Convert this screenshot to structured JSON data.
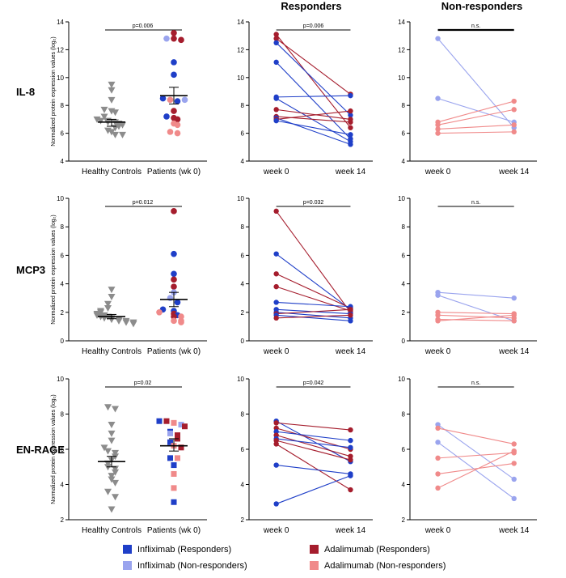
{
  "headers": {
    "responders": "Responders",
    "nonresponders": "Non-responders"
  },
  "ylabel": "Normalized protein expression values (log₂)",
  "legend": [
    {
      "label": "Infliximab (Responders)",
      "color": "#1f3fc8"
    },
    {
      "label": "Infliximab (Non-responders)",
      "color": "#9aa4ee"
    },
    {
      "label": "Adalimumab (Responders)",
      "color": "#a51d2d"
    },
    {
      "label": "Adalimumab (Non-responders)",
      "color": "#f08a8a"
    }
  ],
  "colors": {
    "healthy": "#8c8c8c",
    "ifx_r": "#1f3fc8",
    "ifx_nr": "#9aa4ee",
    "ada_r": "#a51d2d",
    "ada_nr": "#f08a8a"
  },
  "chart_data": [
    {
      "type": "scatter",
      "row_label": "IL-8",
      "xlabel_categories": [
        "Healthy Controls",
        "Patients (wk 0)"
      ],
      "ylim": [
        4,
        14
      ],
      "yticks": [
        4,
        6,
        8,
        10,
        12,
        14
      ],
      "p_text": "p=0.006",
      "healthy": {
        "values": [
          9.5,
          9.1,
          8.4,
          7.7,
          7.6,
          7.5,
          7.2,
          7.0,
          6.9,
          6.9,
          6.8,
          6.8,
          6.7,
          6.6,
          6.5,
          6.4,
          6.2,
          6.1,
          5.9,
          5.9
        ],
        "mean": 6.8,
        "sem_low": 6.5,
        "sem_high": 7.0
      },
      "patients": [
        {
          "group": "ada_r",
          "value": 13.2
        },
        {
          "group": "ifx_nr",
          "value": 12.8
        },
        {
          "group": "ada_r",
          "value": 12.8
        },
        {
          "group": "ada_r",
          "value": 12.7
        },
        {
          "group": "ifx_r",
          "value": 11.1
        },
        {
          "group": "ifx_r",
          "value": 10.2
        },
        {
          "group": "ifx_r",
          "value": 8.5
        },
        {
          "group": "ada_nr",
          "value": 8.4
        },
        {
          "group": "ifx_r",
          "value": 8.3
        },
        {
          "group": "ifx_nr",
          "value": 8.4
        },
        {
          "group": "ada_r",
          "value": 7.6
        },
        {
          "group": "ifx_r",
          "value": 7.2
        },
        {
          "group": "ada_r",
          "value": 7.1
        },
        {
          "group": "ada_r",
          "value": 7.0
        },
        {
          "group": "ada_nr",
          "value": 6.7
        },
        {
          "group": "ada_nr",
          "value": 6.6
        },
        {
          "group": "ada_nr",
          "value": 6.1
        },
        {
          "group": "ada_nr",
          "value": 6.0
        }
      ],
      "patients_mean": 8.7,
      "patients_sem_low": 8.1,
      "patients_sem_high": 9.3,
      "responders": {
        "categories": [
          "week 0",
          "week 14"
        ],
        "ylim": [
          4,
          14
        ],
        "yticks": [
          4,
          6,
          8,
          10,
          12,
          14
        ],
        "p_text": "p=0.006",
        "series": [
          {
            "group": "ada_r",
            "values": [
              13.1,
              6.4
            ]
          },
          {
            "group": "ada_r",
            "values": [
              12.8,
              8.8
            ]
          },
          {
            "group": "ifx_r",
            "values": [
              12.5,
              7.3
            ]
          },
          {
            "group": "ifx_r",
            "values": [
              11.1,
              5.6
            ]
          },
          {
            "group": "ifx_r",
            "values": [
              8.6,
              8.7
            ]
          },
          {
            "group": "ifx_r",
            "values": [
              8.5,
              5.4
            ]
          },
          {
            "group": "ada_r",
            "values": [
              7.7,
              7.0
            ]
          },
          {
            "group": "ada_r",
            "values": [
              7.2,
              6.8
            ]
          },
          {
            "group": "ifx_r",
            "values": [
              7.1,
              5.2
            ]
          },
          {
            "group": "ada_r",
            "values": [
              7.0,
              7.6
            ]
          },
          {
            "group": "ifx_r",
            "values": [
              6.9,
              5.9
            ]
          }
        ]
      },
      "nonresponders": {
        "categories": [
          "week 0",
          "week 14"
        ],
        "ylim": [
          4,
          14
        ],
        "yticks": [
          4,
          6,
          8,
          10,
          12,
          14
        ],
        "p_text": "n.s.",
        "series": [
          {
            "group": "ifx_nr",
            "values": [
              12.8,
              6.4
            ]
          },
          {
            "group": "ifx_nr",
            "values": [
              8.5,
              6.8
            ]
          },
          {
            "group": "ada_nr",
            "values": [
              6.8,
              8.3
            ]
          },
          {
            "group": "ada_nr",
            "values": [
              6.6,
              7.7
            ]
          },
          {
            "group": "ada_nr",
            "values": [
              6.3,
              6.6
            ]
          },
          {
            "group": "ada_nr",
            "values": [
              6.0,
              6.1
            ]
          }
        ]
      }
    },
    {
      "type": "scatter",
      "row_label": "MCP3",
      "xlabel_categories": [
        "Healthy Controls",
        "Patients (wk 0)"
      ],
      "ylim": [
        0,
        10
      ],
      "yticks": [
        0,
        2,
        4,
        6,
        8,
        10
      ],
      "p_text": "p=0.012",
      "healthy": {
        "values": [
          3.6,
          3.1,
          2.6,
          2.3,
          2.1,
          2.0,
          1.9,
          1.8,
          1.8,
          1.7,
          1.7,
          1.6,
          1.6,
          1.5,
          1.5,
          1.4,
          1.4,
          1.3,
          1.3,
          1.2
        ],
        "mean": 1.7,
        "sem_low": 1.55,
        "sem_high": 1.85
      },
      "patients": [
        {
          "group": "ada_r",
          "value": 9.1
        },
        {
          "group": "ifx_r",
          "value": 6.1
        },
        {
          "group": "ifx_r",
          "value": 4.7
        },
        {
          "group": "ada_r",
          "value": 4.3
        },
        {
          "group": "ada_r",
          "value": 3.8
        },
        {
          "group": "ifx_nr",
          "value": 3.4
        },
        {
          "group": "ifx_nr",
          "value": 3.0
        },
        {
          "group": "ifx_r",
          "value": 2.7
        },
        {
          "group": "ifx_r",
          "value": 2.2
        },
        {
          "group": "ada_nr",
          "value": 2.0
        },
        {
          "group": "ifx_r",
          "value": 2.1
        },
        {
          "group": "ada_r",
          "value": 1.9
        },
        {
          "group": "ifx_r",
          "value": 1.8
        },
        {
          "group": "ada_r",
          "value": 1.7
        },
        {
          "group": "ada_nr",
          "value": 1.7
        },
        {
          "group": "ada_nr",
          "value": 1.4
        },
        {
          "group": "ada_nr",
          "value": 1.4
        },
        {
          "group": "ada_nr",
          "value": 1.3
        }
      ],
      "patients_mean": 2.9,
      "patients_sem_low": 2.4,
      "patients_sem_high": 3.4,
      "responders": {
        "categories": [
          "week 0",
          "week 14"
        ],
        "ylim": [
          0,
          10
        ],
        "yticks": [
          0,
          2,
          4,
          6,
          8,
          10
        ],
        "p_text": "p=0.032",
        "series": [
          {
            "group": "ada_r",
            "values": [
              9.1,
              2.0
            ]
          },
          {
            "group": "ifx_r",
            "values": [
              6.1,
              2.2
            ]
          },
          {
            "group": "ada_r",
            "values": [
              4.7,
              2.3
            ]
          },
          {
            "group": "ada_r",
            "values": [
              3.8,
              2.1
            ]
          },
          {
            "group": "ifx_r",
            "values": [
              2.7,
              2.4
            ]
          },
          {
            "group": "ifx_r",
            "values": [
              2.2,
              1.9
            ]
          },
          {
            "group": "ifx_r",
            "values": [
              2.0,
              1.6
            ]
          },
          {
            "group": "ada_r",
            "values": [
              1.9,
              2.2
            ]
          },
          {
            "group": "ifx_r",
            "values": [
              1.8,
              1.4
            ]
          },
          {
            "group": "ada_r",
            "values": [
              1.6,
              1.8
            ]
          }
        ]
      },
      "nonresponders": {
        "categories": [
          "week 0",
          "week 14"
        ],
        "ylim": [
          0,
          10
        ],
        "yticks": [
          0,
          2,
          4,
          6,
          8,
          10
        ],
        "p_text": "n.s.",
        "series": [
          {
            "group": "ifx_nr",
            "values": [
              3.4,
              3.0
            ]
          },
          {
            "group": "ifx_nr",
            "values": [
              3.2,
              1.4
            ]
          },
          {
            "group": "ada_nr",
            "values": [
              2.0,
              1.9
            ]
          },
          {
            "group": "ada_nr",
            "values": [
              1.8,
              1.6
            ]
          },
          {
            "group": "ada_nr",
            "values": [
              1.5,
              1.4
            ]
          },
          {
            "group": "ada_nr",
            "values": [
              1.4,
              1.8
            ]
          }
        ]
      }
    },
    {
      "type": "scatter",
      "row_label": "EN-RAGE",
      "xlabel_categories": [
        "Healthy Controls",
        "Patients (wk 0)"
      ],
      "ylim": [
        2,
        10
      ],
      "yticks": [
        2,
        4,
        6,
        8,
        10
      ],
      "p_text": "p=0.02",
      "healthy": {
        "values": [
          8.4,
          8.3,
          7.4,
          6.9,
          6.5,
          6.1,
          5.9,
          5.8,
          5.6,
          5.4,
          5.2,
          5.0,
          4.9,
          4.7,
          4.5,
          4.3,
          4.1,
          3.6,
          3.3,
          2.6
        ],
        "mean": 5.3,
        "sem_low": 5.0,
        "sem_high": 5.6
      },
      "patients": [
        {
          "group": "ifx_r",
          "value": 7.6
        },
        {
          "group": "ada_r",
          "value": 7.6
        },
        {
          "group": "ada_nr",
          "value": 7.5
        },
        {
          "group": "ifx_nr",
          "value": 7.4
        },
        {
          "group": "ada_r",
          "value": 7.3
        },
        {
          "group": "ifx_r",
          "value": 7.0
        },
        {
          "group": "ifx_nr",
          "value": 6.9
        },
        {
          "group": "ada_r",
          "value": 6.8
        },
        {
          "group": "ada_r",
          "value": 6.6
        },
        {
          "group": "ifx_r",
          "value": 6.4
        },
        {
          "group": "ada_nr",
          "value": 6.2
        },
        {
          "group": "ada_r",
          "value": 6.1
        },
        {
          "group": "ifx_r",
          "value": 5.5
        },
        {
          "group": "ifx_r",
          "value": 5.1
        },
        {
          "group": "ada_nr",
          "value": 4.6
        },
        {
          "group": "ada_nr",
          "value": 3.8
        },
        {
          "group": "ifx_r",
          "value": 3.0
        },
        {
          "group": "ada_nr",
          "value": 5.5
        }
      ],
      "patients_mean": 6.2,
      "patients_sem_low": 5.9,
      "patients_sem_high": 6.6,
      "responders": {
        "categories": [
          "week 0",
          "week 14"
        ],
        "ylim": [
          2,
          10
        ],
        "yticks": [
          2,
          4,
          6,
          8,
          10
        ],
        "p_text": "p=0.042",
        "series": [
          {
            "group": "ifx_r",
            "values": [
              7.6,
              5.3
            ]
          },
          {
            "group": "ada_r",
            "values": [
              7.5,
              7.1
            ]
          },
          {
            "group": "ada_r",
            "values": [
              7.2,
              6.0
            ]
          },
          {
            "group": "ifx_r",
            "values": [
              7.0,
              6.5
            ]
          },
          {
            "group": "ada_r",
            "values": [
              6.8,
              5.6
            ]
          },
          {
            "group": "ifx_r",
            "values": [
              6.6,
              6.1
            ]
          },
          {
            "group": "ada_r",
            "values": [
              6.3,
              3.7
            ]
          },
          {
            "group": "ifx_r",
            "values": [
              5.1,
              4.6
            ]
          },
          {
            "group": "ifx_r",
            "values": [
              2.9,
              4.5
            ]
          },
          {
            "group": "ada_r",
            "values": [
              6.5,
              5.4
            ]
          }
        ]
      },
      "nonresponders": {
        "categories": [
          "week 0",
          "week 14"
        ],
        "ylim": [
          2,
          10
        ],
        "yticks": [
          2,
          4,
          6,
          8,
          10
        ],
        "p_text": "n.s.",
        "series": [
          {
            "group": "ifx_nr",
            "values": [
              7.4,
              4.3
            ]
          },
          {
            "group": "ifx_nr",
            "values": [
              6.4,
              3.2
            ]
          },
          {
            "group": "ada_nr",
            "values": [
              7.2,
              6.3
            ]
          },
          {
            "group": "ada_nr",
            "values": [
              5.5,
              5.8
            ]
          },
          {
            "group": "ada_nr",
            "values": [
              4.6,
              5.2
            ]
          },
          {
            "group": "ada_nr",
            "values": [
              3.8,
              5.9
            ]
          }
        ]
      }
    }
  ]
}
